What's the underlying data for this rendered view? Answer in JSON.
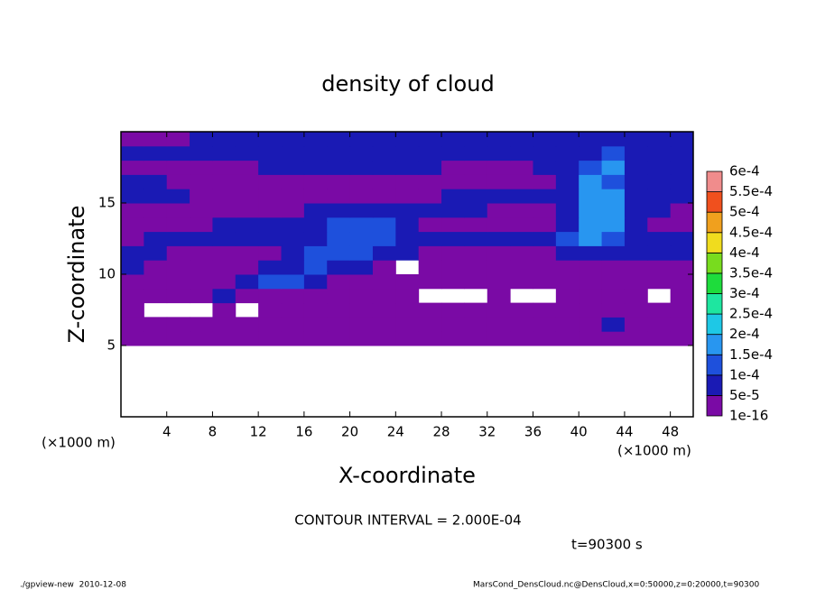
{
  "chart_data": {
    "type": "contour",
    "title": "density of cloud",
    "x_label": "X-coordinate",
    "y_label": "Z-coordinate",
    "x_unit": "(×1000 m)",
    "y_unit": "(×1000 m)",
    "contour_interval": "CONTOUR INTERVAL = 2.000E-04",
    "time": "t=90300 s",
    "footer_left": "./gpview-new  2010-12-08",
    "footer_right": "MarsCond_DensCloud.nc@DensCloud,x=0:50000,z=0:20000,t=90300",
    "xlim": [
      0,
      50
    ],
    "ylim": [
      0,
      20
    ],
    "xticks": [
      4,
      8,
      12,
      16,
      20,
      24,
      28,
      32,
      36,
      40,
      44,
      48
    ],
    "yticks": [
      5,
      10,
      15
    ],
    "levels": [
      {
        "value": 1e-16,
        "label": "1e-16"
      },
      {
        "value": 5e-05,
        "label": "5e-5"
      },
      {
        "value": 0.0001,
        "label": "1e-4"
      },
      {
        "value": 0.00015,
        "label": "1.5e-4"
      },
      {
        "value": 0.0002,
        "label": "2e-4"
      },
      {
        "value": 0.00025,
        "label": "2.5e-4"
      },
      {
        "value": 0.0003,
        "label": "3e-4"
      },
      {
        "value": 0.00035,
        "label": "3.5e-4"
      },
      {
        "value": 0.0004,
        "label": "4e-4"
      },
      {
        "value": 0.00045,
        "label": "4.5e-4"
      },
      {
        "value": 0.0005,
        "label": "5e-4"
      },
      {
        "value": 0.00055,
        "label": "5.5e-4"
      },
      {
        "value": 0.0006,
        "label": "6e-4"
      }
    ],
    "colors": [
      "#7a0aa5",
      "#1a1ab4",
      "#1e50dc",
      "#2896f0",
      "#1ec8e6",
      "#1ee6a0",
      "#1edc3c",
      "#78dc1e",
      "#f0dc1e",
      "#f0a01e",
      "#f0501e",
      "#f08c8c"
    ],
    "z": [
      [
        null,
        null,
        null,
        null,
        null,
        null,
        null,
        null,
        null,
        null,
        null,
        null,
        null,
        null,
        null,
        null,
        null,
        null,
        null,
        null,
        null,
        null,
        null,
        null,
        null
      ],
      [
        null,
        null,
        null,
        null,
        null,
        null,
        null,
        null,
        null,
        null,
        null,
        null,
        null,
        null,
        null,
        null,
        null,
        null,
        null,
        null,
        null,
        null,
        null,
        null,
        null
      ],
      [
        null,
        null,
        null,
        null,
        null,
        null,
        null,
        null,
        null,
        null,
        null,
        null,
        null,
        null,
        null,
        null,
        null,
        null,
        null,
        null,
        null,
        null,
        null,
        null,
        null
      ],
      [
        null,
        null,
        null,
        null,
        null,
        null,
        null,
        null,
        null,
        null,
        null,
        null,
        null,
        null,
        null,
        null,
        null,
        null,
        null,
        null,
        null,
        null,
        null,
        null,
        null
      ],
      [
        null,
        null,
        null,
        null,
        null,
        null,
        null,
        null,
        null,
        null,
        null,
        null,
        null,
        null,
        null,
        null,
        null,
        null,
        null,
        null,
        null,
        null,
        null,
        null,
        null
      ],
      [
        1e-16,
        1e-16,
        1e-16,
        1e-16,
        1e-16,
        1e-16,
        1e-16,
        1e-16,
        1e-16,
        1e-16,
        1e-16,
        1e-16,
        1e-16,
        1e-16,
        1e-16,
        1e-16,
        1e-16,
        1e-16,
        1e-16,
        1e-16,
        1e-16,
        1e-16,
        1e-16,
        1e-16,
        1e-16
      ],
      [
        1e-16,
        1e-16,
        1e-16,
        1e-16,
        1e-16,
        1e-16,
        1e-16,
        1e-16,
        1e-16,
        1e-16,
        1e-16,
        1e-16,
        1e-16,
        1e-16,
        1e-16,
        1e-16,
        1e-16,
        1e-16,
        1e-16,
        1e-16,
        1e-16,
        5e-05,
        1e-16,
        1e-16,
        1e-16
      ],
      [
        1e-16,
        null,
        null,
        null,
        1e-16,
        null,
        1e-16,
        1e-16,
        1e-16,
        1e-16,
        1e-16,
        1e-16,
        1e-16,
        1e-16,
        1e-16,
        1e-16,
        1e-16,
        1e-16,
        1e-16,
        1e-16,
        1e-16,
        1e-16,
        1e-16,
        1e-16,
        1e-16
      ],
      [
        1e-16,
        1e-16,
        1e-16,
        1e-16,
        5e-05,
        1e-16,
        1e-16,
        1e-16,
        1e-16,
        1e-16,
        1e-16,
        1e-16,
        1e-16,
        null,
        null,
        null,
        1e-16,
        null,
        null,
        1e-16,
        1e-16,
        1e-16,
        1e-16,
        null,
        1e-16
      ],
      [
        1e-16,
        1e-16,
        1e-16,
        1e-16,
        1e-16,
        5e-05,
        0.0001,
        0.0001,
        5e-05,
        1e-16,
        1e-16,
        1e-16,
        1e-16,
        1e-16,
        1e-16,
        1e-16,
        1e-16,
        1e-16,
        1e-16,
        1e-16,
        1e-16,
        1e-16,
        1e-16,
        1e-16,
        1e-16
      ],
      [
        5e-05,
        1e-16,
        1e-16,
        1e-16,
        1e-16,
        1e-16,
        5e-05,
        5e-05,
        0.0001,
        5e-05,
        5e-05,
        1e-16,
        null,
        1e-16,
        1e-16,
        1e-16,
        1e-16,
        1e-16,
        1e-16,
        1e-16,
        1e-16,
        1e-16,
        1e-16,
        1e-16,
        1e-16
      ],
      [
        5e-05,
        5e-05,
        1e-16,
        1e-16,
        1e-16,
        1e-16,
        1e-16,
        5e-05,
        0.0001,
        0.0001,
        0.0001,
        5e-05,
        5e-05,
        1e-16,
        1e-16,
        1e-16,
        1e-16,
        1e-16,
        1e-16,
        5e-05,
        5e-05,
        5e-05,
        5e-05,
        5e-05,
        5e-05
      ],
      [
        1e-16,
        5e-05,
        5e-05,
        5e-05,
        5e-05,
        5e-05,
        5e-05,
        5e-05,
        5e-05,
        0.0001,
        0.0001,
        0.0001,
        5e-05,
        5e-05,
        5e-05,
        5e-05,
        5e-05,
        5e-05,
        5e-05,
        0.0001,
        0.00015,
        0.0001,
        5e-05,
        5e-05,
        5e-05
      ],
      [
        1e-16,
        1e-16,
        1e-16,
        1e-16,
        5e-05,
        5e-05,
        5e-05,
        5e-05,
        5e-05,
        0.0001,
        0.0001,
        0.0001,
        5e-05,
        1e-16,
        1e-16,
        1e-16,
        1e-16,
        1e-16,
        1e-16,
        5e-05,
        0.00015,
        0.00015,
        5e-05,
        1e-16,
        1e-16
      ],
      [
        1e-16,
        1e-16,
        1e-16,
        1e-16,
        1e-16,
        1e-16,
        1e-16,
        1e-16,
        5e-05,
        5e-05,
        5e-05,
        5e-05,
        5e-05,
        5e-05,
        5e-05,
        5e-05,
        1e-16,
        1e-16,
        1e-16,
        5e-05,
        0.00015,
        0.00015,
        5e-05,
        5e-05,
        1e-16
      ],
      [
        5e-05,
        5e-05,
        5e-05,
        1e-16,
        1e-16,
        1e-16,
        1e-16,
        1e-16,
        1e-16,
        1e-16,
        1e-16,
        1e-16,
        1e-16,
        1e-16,
        5e-05,
        5e-05,
        5e-05,
        5e-05,
        5e-05,
        5e-05,
        0.00015,
        0.00015,
        5e-05,
        5e-05,
        5e-05
      ],
      [
        5e-05,
        5e-05,
        1e-16,
        1e-16,
        1e-16,
        1e-16,
        1e-16,
        1e-16,
        1e-16,
        1e-16,
        1e-16,
        1e-16,
        1e-16,
        1e-16,
        1e-16,
        1e-16,
        1e-16,
        1e-16,
        1e-16,
        5e-05,
        0.00015,
        0.0001,
        5e-05,
        5e-05,
        5e-05
      ],
      [
        1e-16,
        1e-16,
        1e-16,
        1e-16,
        1e-16,
        1e-16,
        5e-05,
        5e-05,
        5e-05,
        5e-05,
        5e-05,
        5e-05,
        5e-05,
        5e-05,
        1e-16,
        1e-16,
        1e-16,
        1e-16,
        5e-05,
        5e-05,
        0.0001,
        0.00015,
        5e-05,
        5e-05,
        5e-05
      ],
      [
        5e-05,
        5e-05,
        5e-05,
        5e-05,
        5e-05,
        5e-05,
        5e-05,
        5e-05,
        5e-05,
        5e-05,
        5e-05,
        5e-05,
        5e-05,
        5e-05,
        5e-05,
        5e-05,
        5e-05,
        5e-05,
        5e-05,
        5e-05,
        5e-05,
        0.0001,
        5e-05,
        5e-05,
        5e-05
      ],
      [
        1e-16,
        1e-16,
        1e-16,
        5e-05,
        5e-05,
        5e-05,
        5e-05,
        5e-05,
        5e-05,
        5e-05,
        5e-05,
        5e-05,
        5e-05,
        5e-05,
        5e-05,
        5e-05,
        5e-05,
        5e-05,
        5e-05,
        5e-05,
        5e-05,
        5e-05,
        5e-05,
        5e-05,
        5e-05
      ]
    ]
  }
}
